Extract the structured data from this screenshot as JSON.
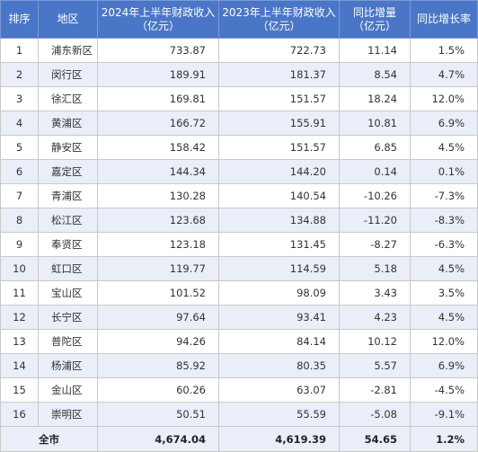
{
  "header": {
    "rank": "排序",
    "district": "地区",
    "rev2024_line1": "2024年上半年财政收入",
    "rev2024_line2": "（亿元）",
    "rev2023_line1": "2023年上半年财政收入",
    "rev2023_line2": "（亿元）",
    "increase_line1": "同比增量",
    "increase_line2": "（亿元）",
    "growth": "同比增长率"
  },
  "rows": [
    {
      "rank": "1",
      "district": "浦东新区",
      "rev2024": "733.87",
      "rev2023": "722.73",
      "increase": "11.14",
      "growth": "1.5%"
    },
    {
      "rank": "2",
      "district": "闵行区",
      "rev2024": "189.91",
      "rev2023": "181.37",
      "increase": "8.54",
      "growth": "4.7%"
    },
    {
      "rank": "3",
      "district": "徐汇区",
      "rev2024": "169.81",
      "rev2023": "151.57",
      "increase": "18.24",
      "growth": "12.0%"
    },
    {
      "rank": "4",
      "district": "黄浦区",
      "rev2024": "166.72",
      "rev2023": "155.91",
      "increase": "10.81",
      "growth": "6.9%"
    },
    {
      "rank": "5",
      "district": "静安区",
      "rev2024": "158.42",
      "rev2023": "151.57",
      "increase": "6.85",
      "growth": "4.5%"
    },
    {
      "rank": "6",
      "district": "嘉定区",
      "rev2024": "144.34",
      "rev2023": "144.20",
      "increase": "0.14",
      "growth": "0.1%"
    },
    {
      "rank": "7",
      "district": "青浦区",
      "rev2024": "130.28",
      "rev2023": "140.54",
      "increase": "-10.26",
      "growth": "-7.3%"
    },
    {
      "rank": "8",
      "district": "松江区",
      "rev2024": "123.68",
      "rev2023": "134.88",
      "increase": "-11.20",
      "growth": "-8.3%"
    },
    {
      "rank": "9",
      "district": "奉贤区",
      "rev2024": "123.18",
      "rev2023": "131.45",
      "increase": "-8.27",
      "growth": "-6.3%"
    },
    {
      "rank": "10",
      "district": "虹口区",
      "rev2024": "119.77",
      "rev2023": "114.59",
      "increase": "5.18",
      "growth": "4.5%"
    },
    {
      "rank": "11",
      "district": "宝山区",
      "rev2024": "101.52",
      "rev2023": "98.09",
      "increase": "3.43",
      "growth": "3.5%"
    },
    {
      "rank": "12",
      "district": "长宁区",
      "rev2024": "97.64",
      "rev2023": "93.41",
      "increase": "4.23",
      "growth": "4.5%"
    },
    {
      "rank": "13",
      "district": "普陀区",
      "rev2024": "94.26",
      "rev2023": "84.14",
      "increase": "10.12",
      "growth": "12.0%"
    },
    {
      "rank": "14",
      "district": "杨浦区",
      "rev2024": "85.92",
      "rev2023": "80.35",
      "increase": "5.57",
      "growth": "6.9%"
    },
    {
      "rank": "15",
      "district": "金山区",
      "rev2024": "60.26",
      "rev2023": "63.07",
      "increase": "-2.81",
      "growth": "-4.5%"
    },
    {
      "rank": "16",
      "district": "崇明区",
      "rev2024": "50.51",
      "rev2023": "55.59",
      "increase": "-5.08",
      "growth": "-9.1%"
    }
  ],
  "total": {
    "label": "全市",
    "rev2024": "4,674.04",
    "rev2023": "4,619.39",
    "increase": "54.65",
    "growth": "1.2%"
  }
}
